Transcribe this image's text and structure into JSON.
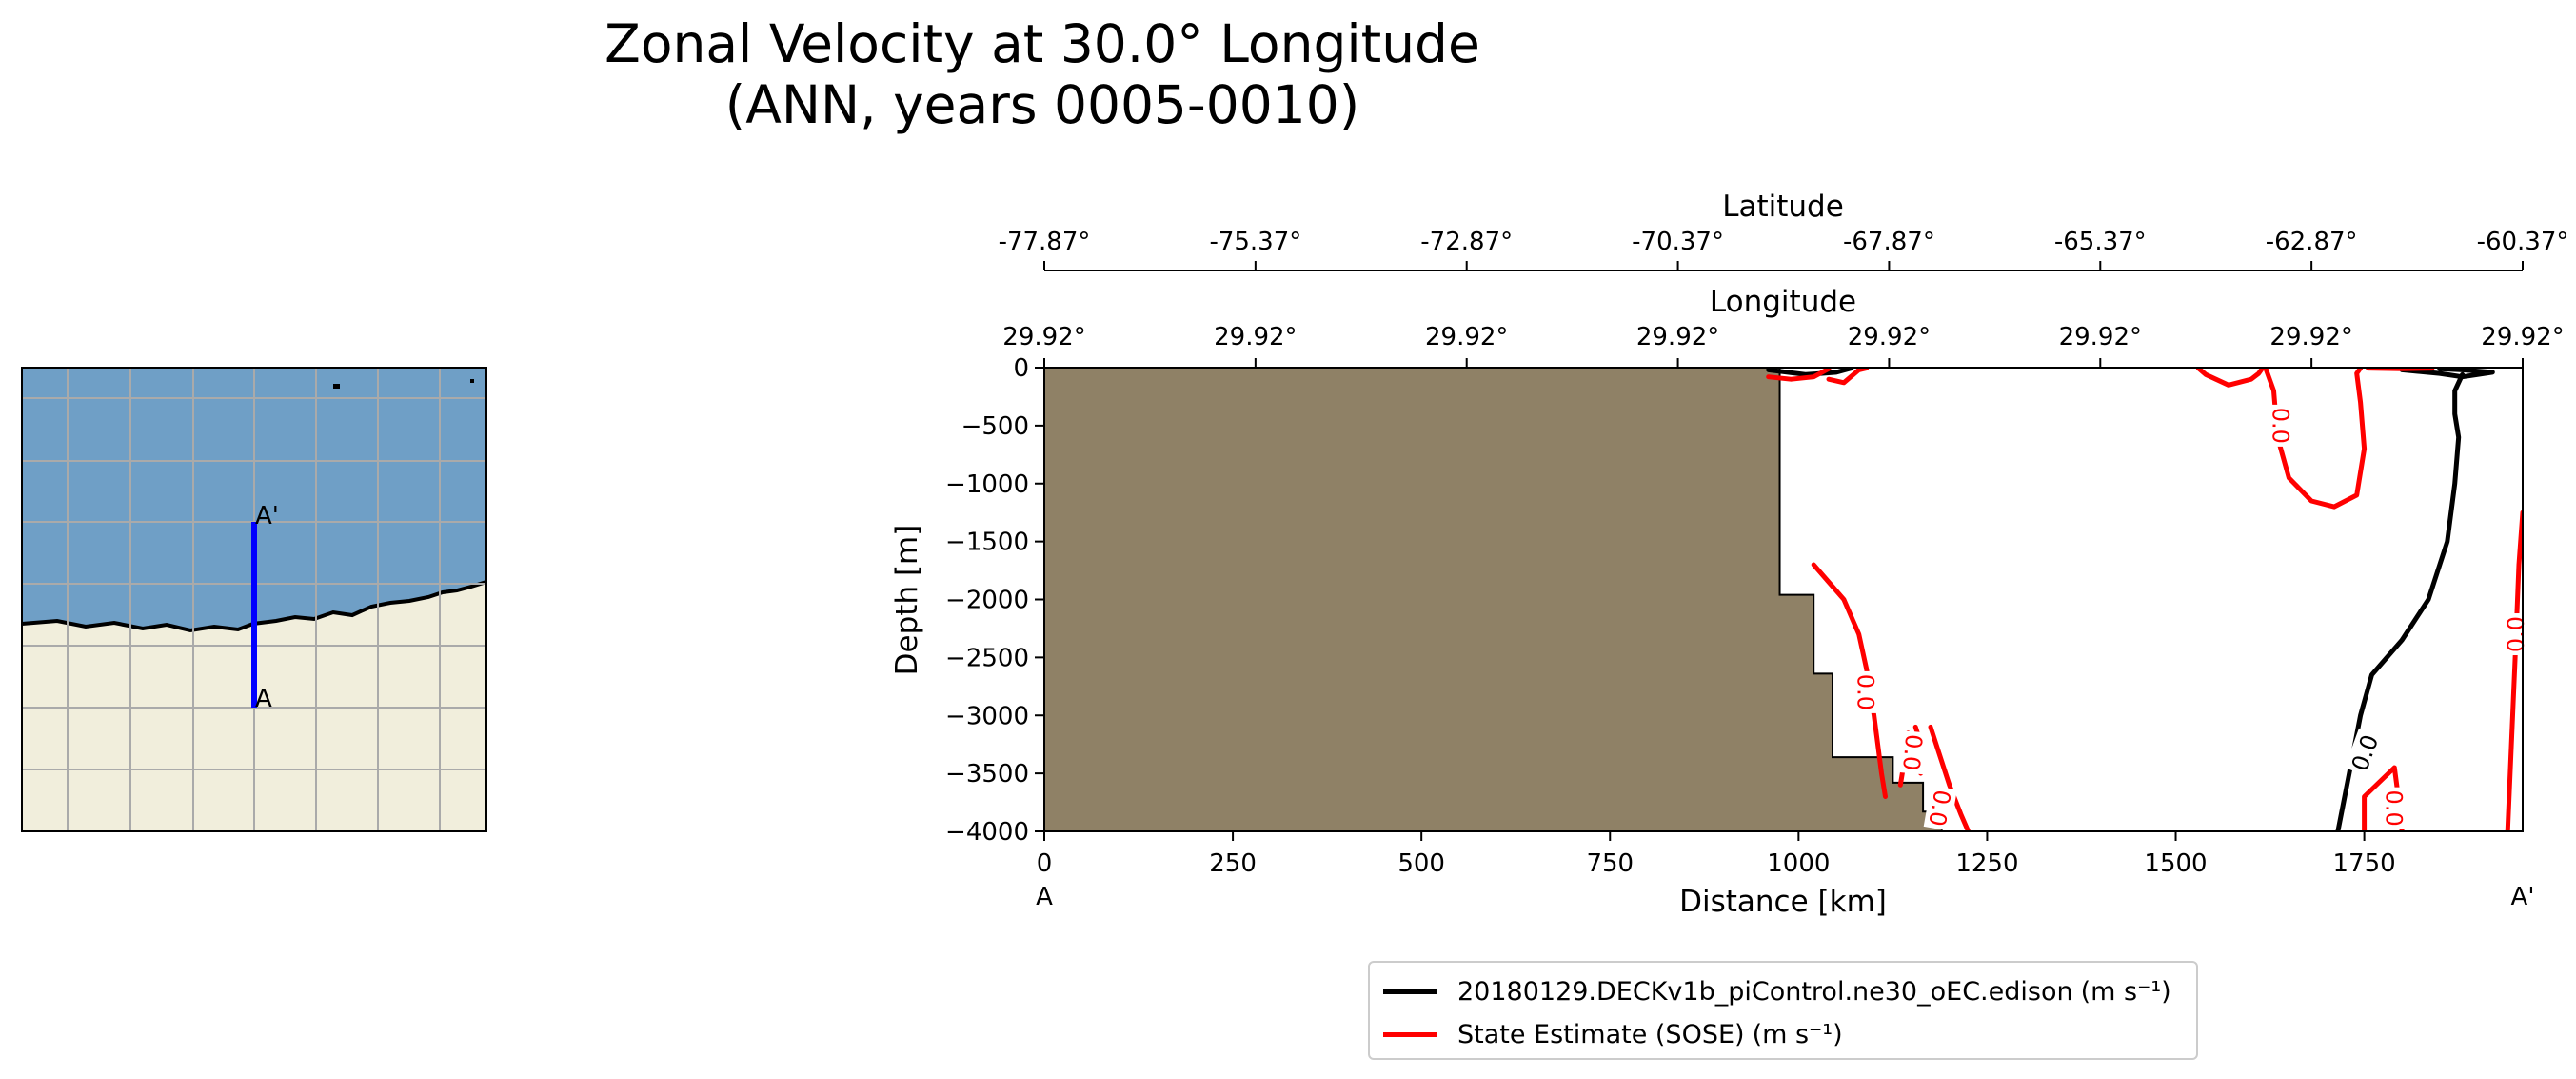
{
  "title": {
    "line1": "Zonal Velocity at 30.0° Longitude",
    "line2": "(ANN, years 0005-0010)"
  },
  "map": {
    "start_label": "A",
    "end_label": "A'",
    "ocean_color": "#6f9fc6",
    "land_color": "#f1eedc",
    "transect_color": "#0000ff"
  },
  "chart_data": {
    "type": "line",
    "xlabel": "Distance [km]",
    "ylabel": "Depth [m]",
    "xlim": [
      0,
      1960
    ],
    "ylim": [
      -4000,
      0
    ],
    "x_ticks": [
      0,
      250,
      500,
      750,
      1000,
      1250,
      1500,
      1750
    ],
    "y_ticks": [
      0,
      -500,
      -1000,
      -1500,
      -2000,
      -2500,
      -3000,
      -3500,
      -4000
    ],
    "x_start_label": "A",
    "x_end_label": "A'",
    "secondary_axes": [
      {
        "label": "Latitude",
        "ticks": [
          "-77.87°",
          "-75.37°",
          "-72.87°",
          "-70.37°",
          "-67.87°",
          "-65.37°",
          "-62.87°",
          "-60.37°"
        ]
      },
      {
        "label": "Longitude",
        "ticks": [
          "29.92°",
          "29.92°",
          "29.92°",
          "29.92°",
          "29.92°",
          "29.92°",
          "29.92°",
          "29.92°"
        ]
      }
    ],
    "bathymetry": {
      "color": "#8f8166",
      "outline": [
        [
          975,
          0
        ],
        [
          975,
          -1960
        ],
        [
          1020,
          -1960
        ],
        [
          1020,
          -2640
        ],
        [
          1045,
          -2640
        ],
        [
          1045,
          -3360
        ],
        [
          1125,
          -3360
        ],
        [
          1125,
          -3580
        ],
        [
          1165,
          -3580
        ],
        [
          1165,
          -3830
        ],
        [
          1190,
          -3830
        ],
        [
          1190,
          -4000
        ]
      ]
    },
    "series": [
      {
        "name": "20180129.DECKv1b_piControl.ne30_oEC.edison",
        "units": "(m s⁻¹)",
        "color": "#000000",
        "contour_label": "0.0",
        "lines": [
          [
            [
              960,
              -20
            ],
            [
              1010,
              -60
            ],
            [
              1050,
              -40
            ],
            [
              1070,
              -5
            ]
          ],
          [
            [
              1800,
              -20
            ],
            [
              1850,
              -50
            ],
            [
              1880,
              -80
            ],
            [
              1900,
              -60
            ],
            [
              1920,
              -40
            ],
            [
              1880,
              -20
            ],
            [
              1850,
              -10
            ]
          ],
          [
            [
              1880,
              -60
            ],
            [
              1870,
              -200
            ],
            [
              1870,
              -400
            ],
            [
              1875,
              -600
            ],
            [
              1870,
              -1000
            ],
            [
              1860,
              -1500
            ],
            [
              1835,
              -2000
            ],
            [
              1800,
              -2350
            ],
            [
              1760,
              -2650
            ],
            [
              1745,
              -3000
            ],
            [
              1730,
              -3500
            ],
            [
              1715,
              -4000
            ]
          ]
        ]
      },
      {
        "name": "State Estimate (SOSE)",
        "units": "(m s⁻¹)",
        "color": "#ff0000",
        "contour_label": "0.0",
        "lines": [
          [
            [
              960,
              -80
            ],
            [
              990,
              -100
            ],
            [
              1020,
              -80
            ],
            [
              1040,
              -10
            ]
          ],
          [
            [
              1040,
              -100
            ],
            [
              1060,
              -130
            ],
            [
              1080,
              -20
            ],
            [
              1090,
              -5
            ]
          ],
          [
            [
              1530,
              -5
            ],
            [
              1540,
              -60
            ],
            [
              1570,
              -150
            ],
            [
              1600,
              -100
            ],
            [
              1610,
              -50
            ],
            [
              1615,
              -5
            ]
          ],
          [
            [
              1620,
              -20
            ],
            [
              1630,
              -200
            ],
            [
              1635,
              -600
            ],
            [
              1650,
              -950
            ],
            [
              1680,
              -1150
            ],
            [
              1710,
              -1200
            ],
            [
              1740,
              -1100
            ],
            [
              1750,
              -700
            ],
            [
              1745,
              -300
            ],
            [
              1740,
              -50
            ],
            [
              1745,
              -5
            ]
          ],
          [
            [
              1755,
              -5
            ],
            [
              1800,
              -10
            ],
            [
              1840,
              -5
            ]
          ],
          [
            [
              1020,
              -1700
            ],
            [
              1040,
              -1850
            ],
            [
              1060,
              -2000
            ],
            [
              1080,
              -2300
            ],
            [
              1090,
              -2600
            ],
            [
              1100,
              -3000
            ],
            [
              1110,
              -3500
            ],
            [
              1115,
              -3700
            ]
          ],
          [
            [
              1145,
              -3150
            ],
            [
              1140,
              -3400
            ],
            [
              1135,
              -3600
            ]
          ],
          [
            [
              1155,
              -3100
            ],
            [
              1165,
              -3300
            ],
            [
              1162,
              -3500
            ]
          ],
          [
            [
              1175,
              -3100
            ],
            [
              1185,
              -3300
            ],
            [
              1200,
              -3600
            ],
            [
              1215,
              -3850
            ],
            [
              1225,
              -4000
            ]
          ],
          [
            [
              1750,
              -4000
            ],
            [
              1750,
              -3700
            ],
            [
              1790,
              -3450
            ],
            [
              1795,
              -3700
            ],
            [
              1800,
              -4000
            ]
          ],
          [
            [
              1940,
              -4000
            ],
            [
              1950,
              -2500
            ],
            [
              1955,
              -1700
            ],
            [
              1960,
              -1250
            ]
          ]
        ]
      }
    ],
    "contour_labels": [
      {
        "text": "0.0",
        "x": 1640,
        "y": -500,
        "color": "#ff0000",
        "angle": 90
      },
      {
        "text": "0.0",
        "x": 1090,
        "y": -2800,
        "color": "#ff0000",
        "angle": 90
      },
      {
        "text": "0.0",
        "x": 1152,
        "y": -3320,
        "color": "#ff0000",
        "angle": 95
      },
      {
        "text": "0.0",
        "x": 1188,
        "y": -3800,
        "color": "#ff0000",
        "angle": 100
      },
      {
        "text": "0.0",
        "x": 1750,
        "y": -3320,
        "color": "#000000",
        "angle": -70
      },
      {
        "text": "0.0",
        "x": 1790,
        "y": -3800,
        "color": "#ff0000",
        "angle": 90
      },
      {
        "text": "0.0",
        "x": 1950,
        "y": -2300,
        "color": "#ff0000",
        "angle": -90
      }
    ]
  }
}
